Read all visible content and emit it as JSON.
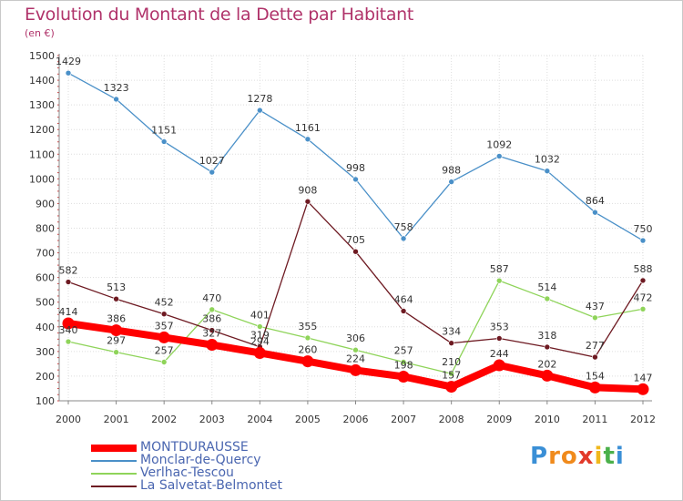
{
  "header": {
    "title": "Evolution du Montant de la Dette par Habitant",
    "subtitle": "(en €)"
  },
  "chart_data": {
    "type": "line",
    "title": "Evolution du Montant de la Dette par Habitant",
    "ylabel": "(en €)",
    "xlabel": "",
    "ylim": [
      100,
      1500
    ],
    "yticks": [
      100,
      200,
      300,
      400,
      500,
      600,
      700,
      800,
      900,
      1000,
      1100,
      1200,
      1300,
      1400,
      1500
    ],
    "categories": [
      "2000",
      "2001",
      "2002",
      "2003",
      "2004",
      "2005",
      "2006",
      "2007",
      "2008",
      "2009",
      "2010",
      "2011",
      "2012"
    ],
    "grid": true,
    "legend_position": "bottom-left",
    "series": [
      {
        "name": "MONTDURAUSSE",
        "color": "#ff0000",
        "values": [
          414,
          386,
          357,
          327,
          294,
          260,
          224,
          198,
          157,
          244,
          202,
          154,
          147
        ]
      },
      {
        "name": "Monclar-de-Quercy",
        "color": "#4a90c8",
        "values": [
          1429,
          1323,
          1151,
          1027,
          1278,
          1161,
          998,
          758,
          988,
          1092,
          1032,
          864,
          750
        ]
      },
      {
        "name": "Verlhac-Tescou",
        "color": "#8fd45a",
        "values": [
          340,
          297,
          257,
          470,
          401,
          355,
          306,
          257,
          210,
          587,
          514,
          437,
          472
        ]
      },
      {
        "name": "La Salvetat-Belmontet",
        "color": "#6e1a22",
        "values": [
          582,
          513,
          452,
          386,
          319,
          908,
          705,
          464,
          334,
          353,
          318,
          277,
          588
        ]
      }
    ]
  },
  "logo": {
    "text": "Proxiti",
    "letters": [
      "P",
      "r",
      "o",
      "x",
      "i",
      "t",
      "i"
    ]
  }
}
